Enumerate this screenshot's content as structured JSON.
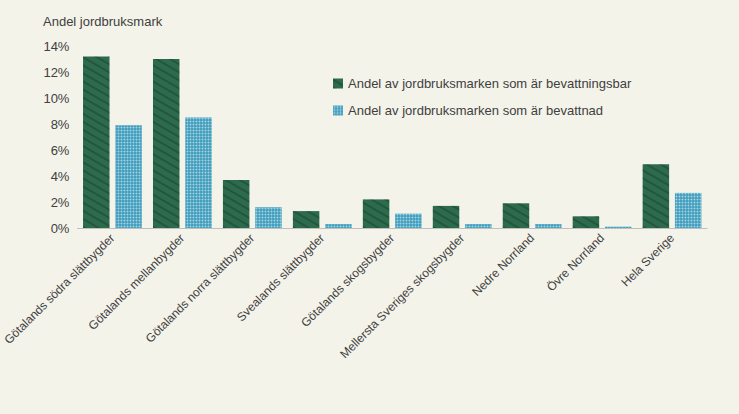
{
  "chart_data": {
    "type": "bar",
    "ylabel": "Andel jordbruksmark",
    "categories": [
      "Götalands södra slättbygder",
      "Götalands mellanbygder",
      "Götalands norra slättbygder",
      "Svealands slättbygder",
      "Götalands skogsbygder",
      "Mellersta Sveriges skogsbygder",
      "Nedre Norrland",
      "Övre Norrland",
      "Hela Sverige"
    ],
    "series": [
      {
        "name": "Andel av jordbruksmarken som är bevattningsbar",
        "color": "#2d6b4d",
        "values": [
          13.2,
          13.0,
          3.7,
          1.3,
          2.2,
          1.7,
          1.9,
          0.9,
          4.9
        ]
      },
      {
        "name": "Andel av jordbruksmarken som är bevattnad",
        "color": "#3f9dbd",
        "values": [
          7.9,
          8.5,
          1.6,
          0.3,
          1.1,
          0.3,
          0.3,
          0.1,
          2.7
        ]
      }
    ],
    "ylim": [
      0,
      14
    ],
    "yticks": [
      {
        "value": 0,
        "label": "0%"
      },
      {
        "value": 2,
        "label": "2%"
      },
      {
        "value": 4,
        "label": "4%"
      },
      {
        "value": 6,
        "label": "6%"
      },
      {
        "value": 8,
        "label": "8%"
      },
      {
        "value": 10,
        "label": "10%"
      },
      {
        "value": 12,
        "label": "12%"
      },
      {
        "value": 14,
        "label": "14%"
      }
    ],
    "grid": false,
    "legend": "top"
  }
}
